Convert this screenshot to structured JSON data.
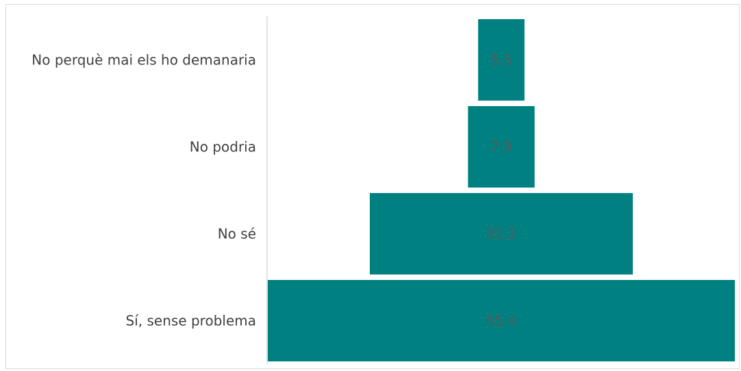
{
  "chart_data": {
    "type": "bar",
    "orientation": "horizontal-funnel",
    "title": "",
    "xlabel": "",
    "ylabel": "",
    "categories": [
      "No perquè mai els ho demanaria",
      "No podria",
      "No sé",
      "Sí, sense problema"
    ],
    "values": [
      5.5,
      7.9,
      31.2,
      55.4
    ],
    "value_labels": [
      "5.5",
      "7.9",
      "31.2",
      "55.4"
    ],
    "xlim": [
      0,
      55.4
    ],
    "grid": false,
    "legend": "none",
    "bar_color": "#008080",
    "axis_color": "#d9d9d9"
  }
}
